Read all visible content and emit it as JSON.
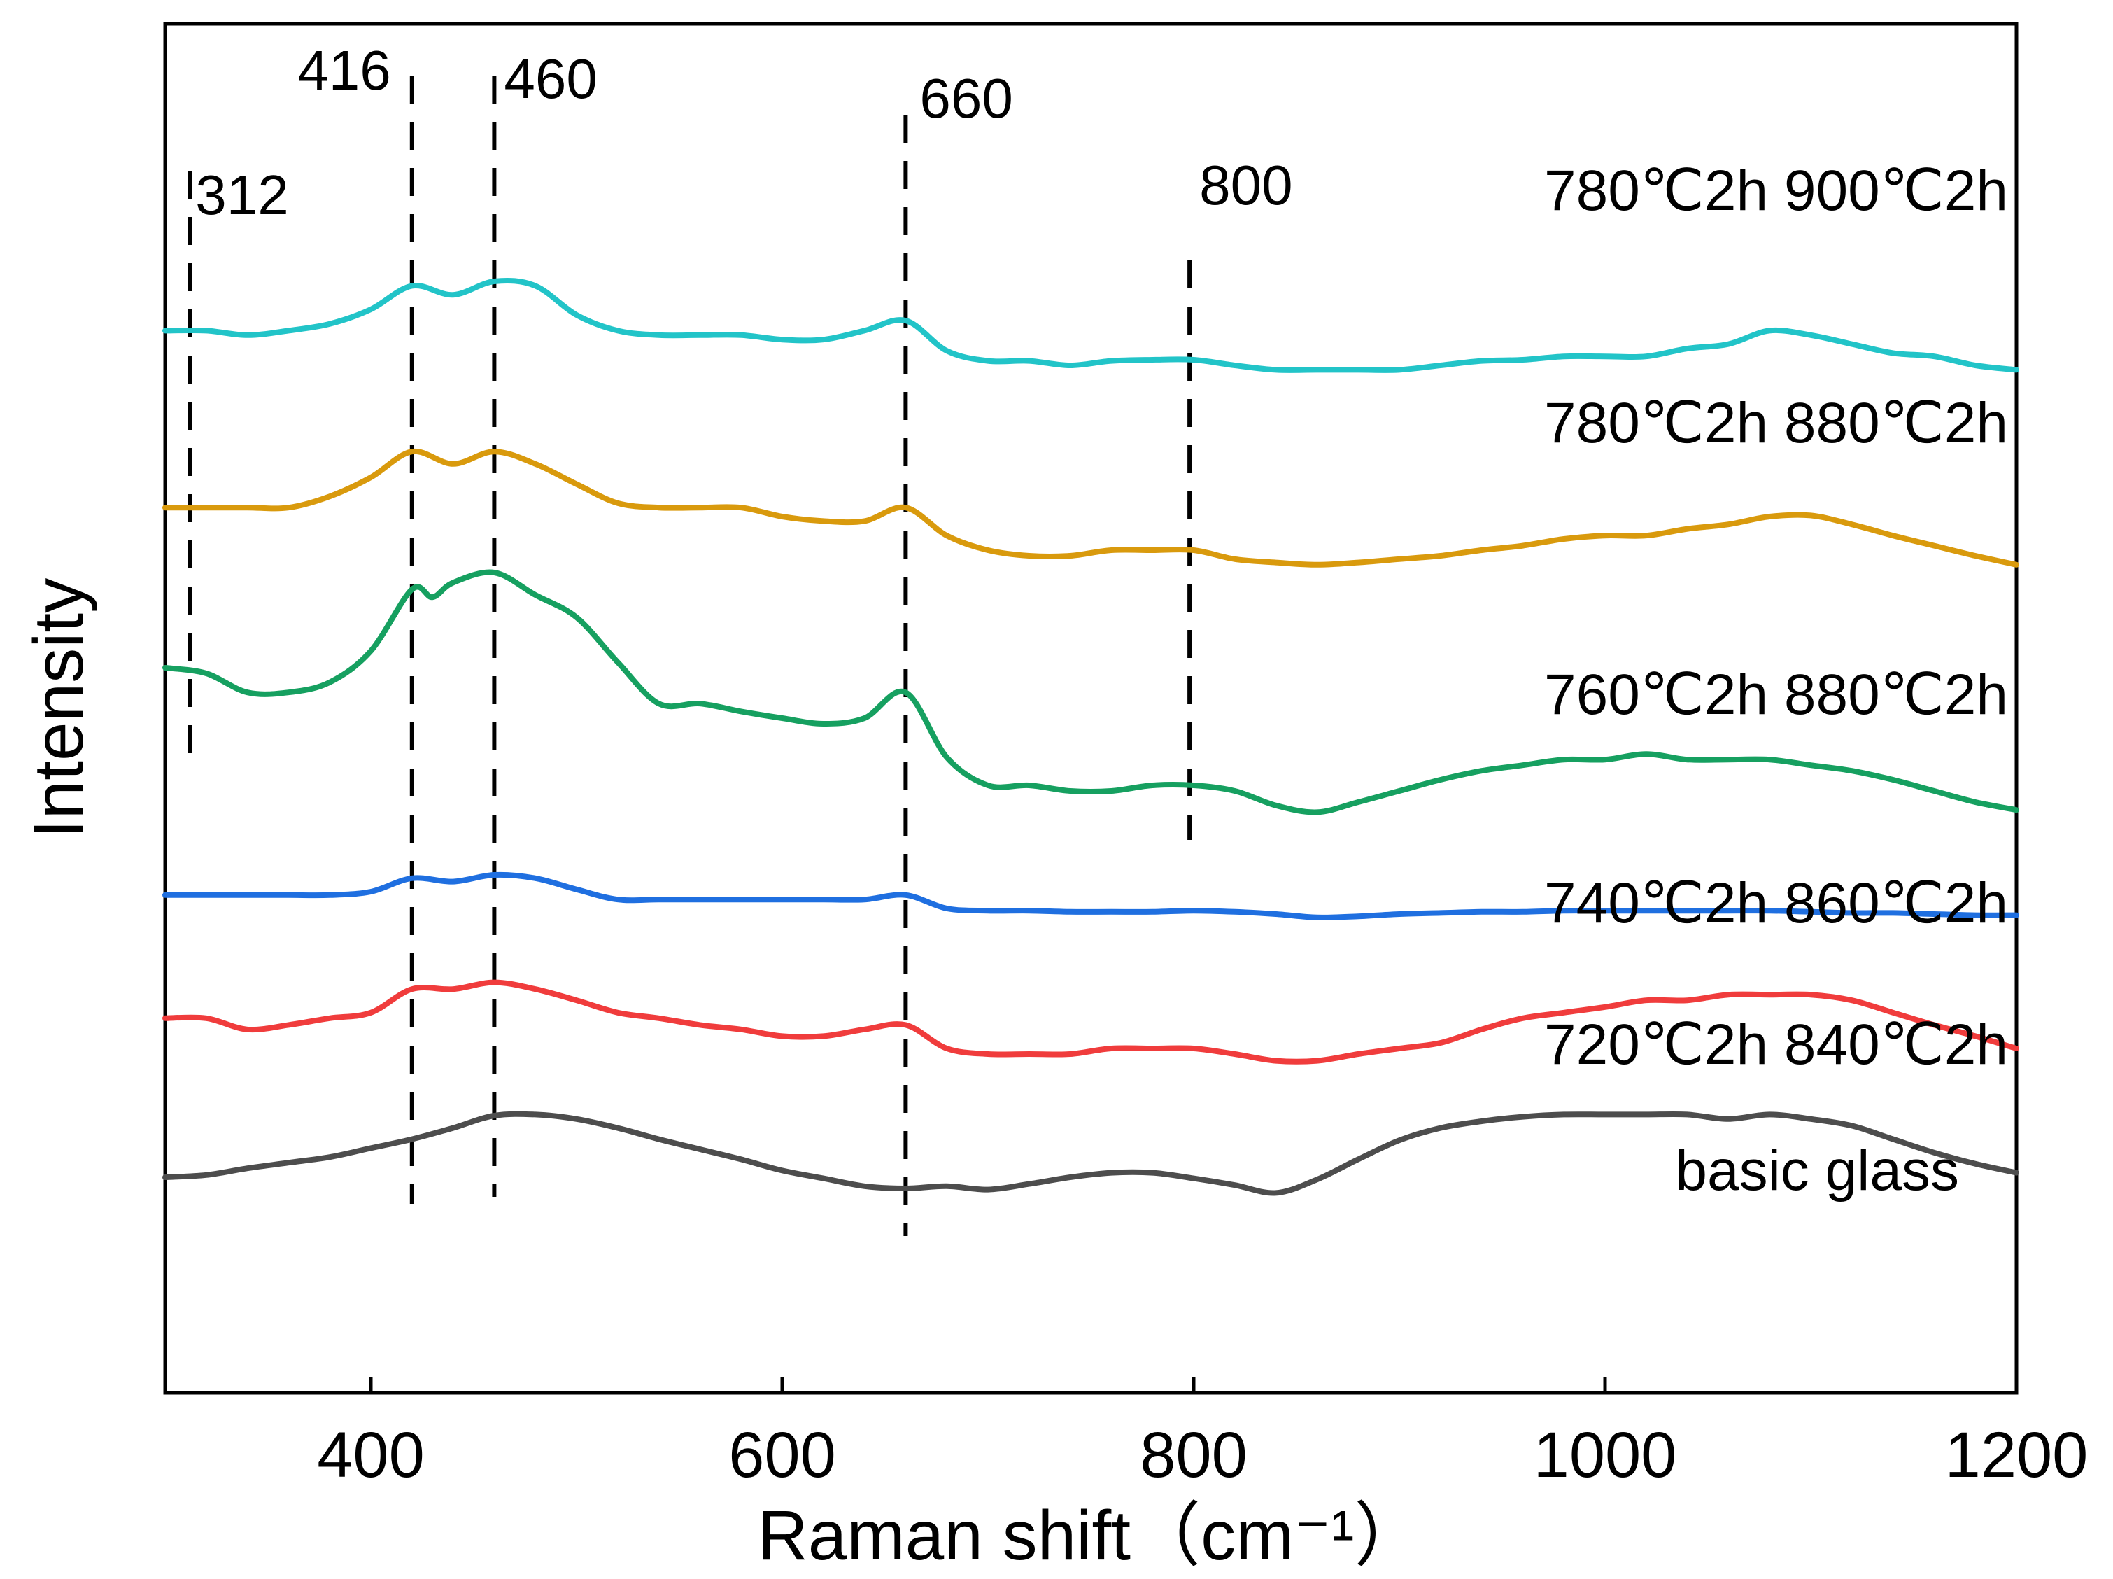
{
  "chart_data": {
    "type": "line",
    "title": "",
    "xlabel": "Raman shift（cm⁻¹）",
    "ylabel": "Intensity",
    "xlim": [
      300,
      1200
    ],
    "ylim": [
      0,
      100
    ],
    "xticks": [
      400,
      600,
      800,
      1000,
      1200
    ],
    "xtick_labels": [
      "400",
      "600",
      "800",
      "1000",
      "1200"
    ],
    "y_tick_labels": "none",
    "grid": false,
    "legend": "none (labels placed next to curves, right side)",
    "series": [
      {
        "name": "basic glass",
        "color": "#4d4d4d",
        "x": [
          300,
          320,
          340,
          360,
          380,
          400,
          420,
          440,
          460,
          480,
          500,
          520,
          540,
          560,
          580,
          600,
          620,
          640,
          660,
          680,
          700,
          720,
          740,
          760,
          780,
          800,
          820,
          840,
          860,
          880,
          900,
          920,
          940,
          960,
          980,
          1000,
          1020,
          1040,
          1060,
          1080,
          1100,
          1120,
          1140,
          1160,
          1180,
          1200
        ],
        "values": [
          8.0,
          8.2,
          8.8,
          9.3,
          9.8,
          10.6,
          11.4,
          12.4,
          13.5,
          13.6,
          13.2,
          12.4,
          11.4,
          10.5,
          9.6,
          8.6,
          7.9,
          7.2,
          7.0,
          7.2,
          6.9,
          7.4,
          8.0,
          8.4,
          8.4,
          7.9,
          7.3,
          6.6,
          7.8,
          9.6,
          11.3,
          12.4,
          13.0,
          13.4,
          13.6,
          13.6,
          13.6,
          13.6,
          13.2,
          13.6,
          13.2,
          12.6,
          11.4,
          10.2,
          9.2,
          8.4
        ]
      },
      {
        "name": "720℃2h 840℃2h",
        "color": "#f03c3c",
        "x": [
          300,
          320,
          340,
          360,
          380,
          400,
          420,
          440,
          460,
          480,
          500,
          520,
          540,
          560,
          580,
          600,
          620,
          640,
          660,
          680,
          700,
          720,
          740,
          760,
          780,
          800,
          820,
          840,
          860,
          880,
          900,
          920,
          940,
          960,
          980,
          1000,
          1020,
          1040,
          1060,
          1080,
          1100,
          1120,
          1140,
          1160,
          1180,
          1200
        ],
        "values": [
          22.2,
          22.2,
          21.2,
          21.6,
          22.2,
          22.7,
          24.8,
          24.8,
          25.4,
          24.8,
          23.8,
          22.7,
          22.2,
          21.6,
          21.2,
          20.6,
          20.6,
          21.2,
          21.6,
          19.5,
          19.0,
          19.0,
          19.0,
          19.5,
          19.5,
          19.5,
          19.0,
          18.4,
          18.4,
          19.0,
          19.5,
          20.0,
          21.2,
          22.2,
          22.7,
          23.2,
          23.8,
          23.8,
          24.3,
          24.3,
          24.3,
          23.8,
          22.7,
          21.6,
          20.6,
          19.5
        ]
      },
      {
        "name": "740℃2h 860℃2h",
        "color": "#1f6fe0",
        "x": [
          300,
          320,
          340,
          360,
          380,
          400,
          420,
          440,
          460,
          480,
          500,
          520,
          540,
          560,
          580,
          600,
          620,
          640,
          660,
          680,
          700,
          720,
          740,
          760,
          780,
          800,
          820,
          840,
          860,
          880,
          900,
          920,
          940,
          960,
          980,
          1000,
          1020,
          1040,
          1060,
          1080,
          1100,
          1120,
          1140,
          1160,
          1180,
          1200
        ],
        "values": [
          33.2,
          33.2,
          33.2,
          33.2,
          33.2,
          33.5,
          34.7,
          34.4,
          35.0,
          34.7,
          33.7,
          32.8,
          32.8,
          32.8,
          32.8,
          32.8,
          32.8,
          32.8,
          33.2,
          32.0,
          31.8,
          31.8,
          31.7,
          31.7,
          31.7,
          31.8,
          31.7,
          31.5,
          31.2,
          31.3,
          31.5,
          31.6,
          31.7,
          31.7,
          31.8,
          31.8,
          31.8,
          31.8,
          31.8,
          31.8,
          31.7,
          31.6,
          31.6,
          31.5,
          31.4,
          31.4
        ]
      },
      {
        "name": "760℃2h 880℃2h",
        "color": "#16a060",
        "x": [
          300,
          320,
          340,
          360,
          380,
          400,
          420,
          430,
          440,
          460,
          480,
          500,
          520,
          540,
          560,
          580,
          600,
          620,
          640,
          660,
          680,
          700,
          720,
          740,
          760,
          780,
          800,
          820,
          840,
          860,
          880,
          900,
          920,
          940,
          960,
          980,
          1000,
          1020,
          1040,
          1060,
          1080,
          1100,
          1120,
          1140,
          1160,
          1180,
          1200
        ],
        "values": [
          53.5,
          53.0,
          51.3,
          51.3,
          52.2,
          55.0,
          60.5,
          59.8,
          61.1,
          62.0,
          60.0,
          58.0,
          54.0,
          50.3,
          50.3,
          49.6,
          49.0,
          48.5,
          49.0,
          51.3,
          45.5,
          43.0,
          43.0,
          42.5,
          42.5,
          43.0,
          43.0,
          42.5,
          41.2,
          40.6,
          41.5,
          42.5,
          43.5,
          44.3,
          44.8,
          45.3,
          45.3,
          45.8,
          45.3,
          45.3,
          45.3,
          44.8,
          44.3,
          43.5,
          42.5,
          41.5,
          40.8
        ]
      },
      {
        "name": "780℃2h 880℃2h",
        "color": "#d99a0d",
        "x": [
          300,
          320,
          340,
          360,
          380,
          400,
          420,
          440,
          460,
          480,
          500,
          520,
          540,
          560,
          580,
          600,
          620,
          640,
          660,
          680,
          700,
          720,
          740,
          760,
          780,
          800,
          820,
          840,
          860,
          880,
          900,
          920,
          940,
          960,
          980,
          1000,
          1020,
          1040,
          1060,
          1080,
          1100,
          1120,
          1140,
          1160,
          1180,
          1200
        ],
        "values": [
          67.8,
          67.8,
          67.8,
          67.8,
          68.8,
          70.5,
          72.8,
          71.7,
          72.8,
          71.7,
          69.9,
          68.2,
          67.8,
          67.8,
          67.8,
          67.0,
          66.6,
          66.6,
          67.8,
          65.3,
          64.0,
          63.5,
          63.5,
          64.0,
          64.0,
          64.0,
          63.2,
          62.9,
          62.7,
          62.9,
          63.2,
          63.5,
          64.0,
          64.4,
          65.0,
          65.3,
          65.3,
          65.9,
          66.3,
          67.0,
          67.1,
          66.3,
          65.3,
          64.4,
          63.5,
          62.7
        ]
      },
      {
        "name": "780℃2h 900℃2h",
        "color": "#22c4c8",
        "x": [
          300,
          320,
          340,
          360,
          380,
          400,
          420,
          440,
          460,
          480,
          500,
          520,
          540,
          560,
          580,
          600,
          620,
          640,
          660,
          680,
          700,
          720,
          740,
          760,
          780,
          800,
          820,
          840,
          860,
          880,
          900,
          920,
          940,
          960,
          980,
          1000,
          1020,
          1040,
          1060,
          1080,
          1100,
          1120,
          1140,
          1160,
          1180,
          1200
        ],
        "values": [
          83.6,
          83.6,
          83.2,
          83.6,
          84.2,
          85.5,
          87.6,
          86.8,
          88.0,
          87.6,
          85.0,
          83.6,
          83.2,
          83.2,
          83.2,
          82.8,
          82.8,
          83.6,
          84.5,
          81.8,
          80.9,
          80.9,
          80.5,
          80.9,
          81.0,
          81.0,
          80.5,
          80.1,
          80.1,
          80.1,
          80.1,
          80.5,
          80.9,
          81.0,
          81.3,
          81.3,
          81.3,
          82.0,
          82.4,
          83.6,
          83.2,
          82.4,
          81.6,
          81.3,
          80.5,
          80.1
        ]
      }
    ],
    "reference_lines": [
      {
        "label": "312",
        "x": 312
      },
      {
        "label": "416",
        "x": 420
      },
      {
        "label": "460",
        "x": 460
      },
      {
        "label": "660",
        "x": 660
      },
      {
        "label": "800",
        "x": 798
      }
    ]
  }
}
